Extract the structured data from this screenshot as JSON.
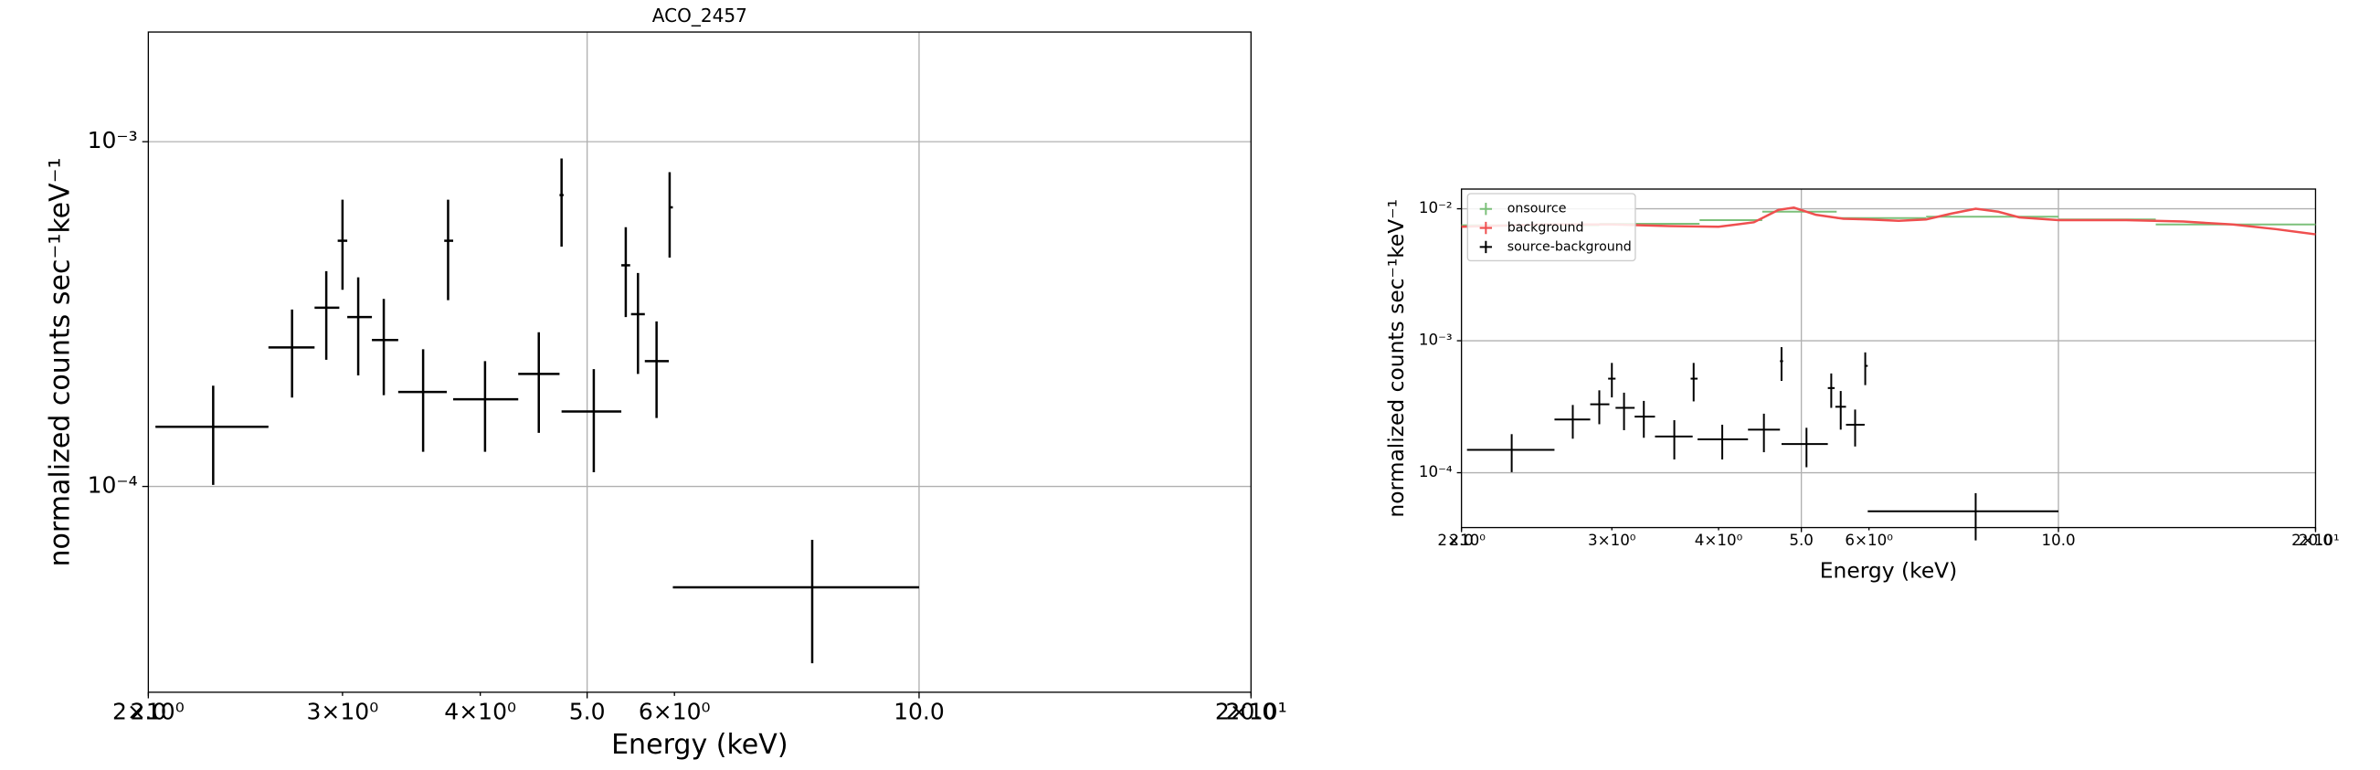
{
  "chart_data": [
    {
      "type": "errorbar",
      "title": "ACO_2457",
      "xlabel": "Energy (keV)",
      "ylabel": "normalized counts sec⁻¹keV⁻¹",
      "xscale": "log",
      "yscale": "log",
      "grid": true,
      "xlim": [
        2.0,
        20.0
      ],
      "ylim": [
        2.53e-05,
        0.00208
      ],
      "xticks": [
        {
          "value": 2.0,
          "label": "2.0"
        },
        {
          "value": 5.0,
          "label": "5.0"
        },
        {
          "value": 10.0,
          "label": "10.0"
        },
        {
          "value": 20.0,
          "label": "20.0"
        }
      ],
      "xminor_ticks": [
        {
          "value": 2,
          "label": "2×10⁰"
        },
        {
          "value": 3,
          "label": "3×10⁰"
        },
        {
          "value": 4,
          "label": "4×10⁰"
        },
        {
          "value": 6,
          "label": "6×10⁰"
        },
        {
          "value": 20,
          "label": "2×10¹"
        }
      ],
      "yticks": [
        {
          "value": 0.001,
          "label": "10⁻³"
        },
        {
          "value": 0.0001,
          "label": "10⁻⁴"
        }
      ],
      "series": [
        {
          "kind": "errorbar",
          "color": "#000000",
          "x": [
            2.29,
            2.7,
            2.9,
            3.0,
            3.1,
            3.27,
            3.55,
            3.74,
            4.04,
            4.52,
            4.74,
            5.07,
            5.42,
            5.56,
            5.78,
            5.94,
            8.0
          ],
          "xlo": [
            2.03,
            2.57,
            2.83,
            2.97,
            3.03,
            3.19,
            3.37,
            3.71,
            3.78,
            4.33,
            4.72,
            4.74,
            5.37,
            5.48,
            5.64,
            5.93,
            5.98
          ],
          "xhi": [
            2.57,
            2.83,
            2.98,
            3.03,
            3.19,
            3.37,
            3.73,
            3.78,
            4.33,
            4.72,
            4.76,
            5.37,
            5.47,
            5.64,
            5.93,
            5.98,
            10.0
          ],
          "values": [
            0.000149,
            0.000253,
            0.00033,
            0.000516,
            0.00031,
            0.000266,
            0.000188,
            0.000516,
            0.000179,
            0.000212,
            0.0007,
            0.000165,
            0.000438,
            0.000316,
            0.000231,
            0.000645,
            5.1e-05
          ],
          "ylo": [
            0.000101,
            0.000181,
            0.000233,
            0.000372,
            0.00021,
            0.000184,
            0.000126,
            0.000347,
            0.000126,
            0.000143,
            0.000496,
            0.00011,
            0.00031,
            0.000212,
            0.000158,
            0.000461,
            3.07e-05
          ],
          "yhi": [
            0.000196,
            0.000326,
            0.000421,
            0.000679,
            0.000404,
            0.00035,
            0.00025,
            0.000679,
            0.000231,
            0.00028,
            0.000894,
            0.000219,
            0.000565,
            0.000416,
            0.000301,
            0.000816,
            7e-05
          ]
        }
      ]
    },
    {
      "type": "errorbar",
      "xlabel": "Energy (keV)",
      "ylabel": "normalized counts sec⁻¹keV⁻¹",
      "xscale": "log",
      "yscale": "log",
      "grid": true,
      "legend": "upper left",
      "xlim": [
        2.0,
        20.0
      ],
      "ylim": [
        3.84e-05,
        0.0141
      ],
      "xticks": [
        {
          "value": 2.0,
          "label": "2.0"
        },
        {
          "value": 5.0,
          "label": "5.0"
        },
        {
          "value": 10.0,
          "label": "10.0"
        },
        {
          "value": 20.0,
          "label": "20.0"
        }
      ],
      "xminor_ticks": [
        {
          "value": 2,
          "label": "2×10⁰"
        },
        {
          "value": 3,
          "label": "3×10⁰"
        },
        {
          "value": 4,
          "label": "4×10⁰"
        },
        {
          "value": 6,
          "label": "6×10⁰"
        },
        {
          "value": 20,
          "label": "2×10¹"
        }
      ],
      "yticks": [
        {
          "value": 0.01,
          "label": "10⁻²"
        },
        {
          "value": 0.001,
          "label": "10⁻³"
        },
        {
          "value": 0.0001,
          "label": "10⁻⁴"
        }
      ],
      "series": [
        {
          "name": "onsource",
          "kind": "step",
          "color": "#7cc07a",
          "x": [
            2.45,
            3.35,
            4.15,
            5.0,
            6.25,
            8.5,
            11.5,
            16.5
          ],
          "xlo": [
            2.0,
            2.9,
            3.8,
            4.5,
            5.5,
            7.0,
            10.0,
            13.0
          ],
          "xhi": [
            2.9,
            3.8,
            4.5,
            5.5,
            7.0,
            10.0,
            13.0,
            20.0
          ],
          "values": [
            0.0075,
            0.0077,
            0.0082,
            0.0095,
            0.0085,
            0.0087,
            0.0083,
            0.0076
          ]
        },
        {
          "name": "background",
          "kind": "line",
          "color": "#ef4f4f",
          "x": [
            2.0,
            2.5,
            3.0,
            3.5,
            4.0,
            4.4,
            4.7,
            4.9,
            5.2,
            5.6,
            6.0,
            6.5,
            7.0,
            7.5,
            8.0,
            8.5,
            9.0,
            10.0,
            12.0,
            14.0,
            16.0,
            18.0,
            20.0
          ],
          "values": [
            0.0073,
            0.0076,
            0.0076,
            0.0074,
            0.0073,
            0.0079,
            0.0098,
            0.0102,
            0.009,
            0.0084,
            0.0083,
            0.0081,
            0.0083,
            0.0092,
            0.01,
            0.0095,
            0.0086,
            0.0082,
            0.0082,
            0.008,
            0.0076,
            0.007,
            0.0064
          ]
        },
        {
          "name": "source-background",
          "kind": "errorbar",
          "color": "#000000",
          "x": [
            2.29,
            2.7,
            2.9,
            3.0,
            3.1,
            3.27,
            3.55,
            3.74,
            4.04,
            4.52,
            4.74,
            5.07,
            5.42,
            5.56,
            5.78,
            5.94,
            8.0
          ],
          "xlo": [
            2.03,
            2.57,
            2.83,
            2.97,
            3.03,
            3.19,
            3.37,
            3.71,
            3.78,
            4.33,
            4.72,
            4.74,
            5.37,
            5.48,
            5.64,
            5.93,
            5.98
          ],
          "xhi": [
            2.57,
            2.83,
            2.98,
            3.03,
            3.19,
            3.37,
            3.73,
            3.78,
            4.33,
            4.72,
            4.76,
            5.37,
            5.47,
            5.64,
            5.93,
            5.98,
            10.0
          ],
          "values": [
            0.000149,
            0.000253,
            0.00033,
            0.000516,
            0.00031,
            0.000266,
            0.000188,
            0.000516,
            0.000179,
            0.000212,
            0.0007,
            0.000165,
            0.000438,
            0.000316,
            0.000231,
            0.000645,
            5.1e-05
          ],
          "ylo": [
            0.000101,
            0.000181,
            0.000233,
            0.000372,
            0.00021,
            0.000184,
            0.000126,
            0.000347,
            0.000126,
            0.000143,
            0.000496,
            0.00011,
            0.00031,
            0.000212,
            0.000158,
            0.000461,
            3.07e-05
          ],
          "yhi": [
            0.000196,
            0.000326,
            0.000421,
            0.000679,
            0.000404,
            0.00035,
            0.00025,
            0.000679,
            0.000231,
            0.00028,
            0.000894,
            0.000219,
            0.000565,
            0.000416,
            0.000301,
            0.000816,
            7e-05
          ]
        }
      ]
    }
  ]
}
